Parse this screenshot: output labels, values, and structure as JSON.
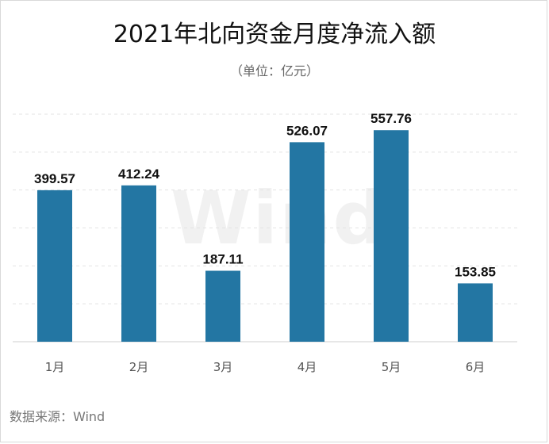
{
  "header": {
    "title": "2021年北向资金月度净流入额",
    "subtitle": "（单位：亿元）"
  },
  "footer": {
    "source": "数据来源：Wind"
  },
  "watermark": "Wind",
  "colors": {
    "bar": "#2376A3",
    "grid": "#e3e3e3",
    "axis": "#cfcfcf"
  },
  "chart_data": {
    "type": "bar",
    "categories": [
      "1月",
      "2月",
      "3月",
      "4月",
      "5月",
      "6月"
    ],
    "values": [
      399.57,
      412.24,
      187.11,
      526.07,
      557.76,
      153.85
    ],
    "title": "2021年北向资金月度净流入额",
    "subtitle": "（单位：亿元）",
    "xlabel": "",
    "ylabel": "",
    "ylim": [
      0,
      600
    ],
    "grid": true,
    "data_labels": true
  }
}
